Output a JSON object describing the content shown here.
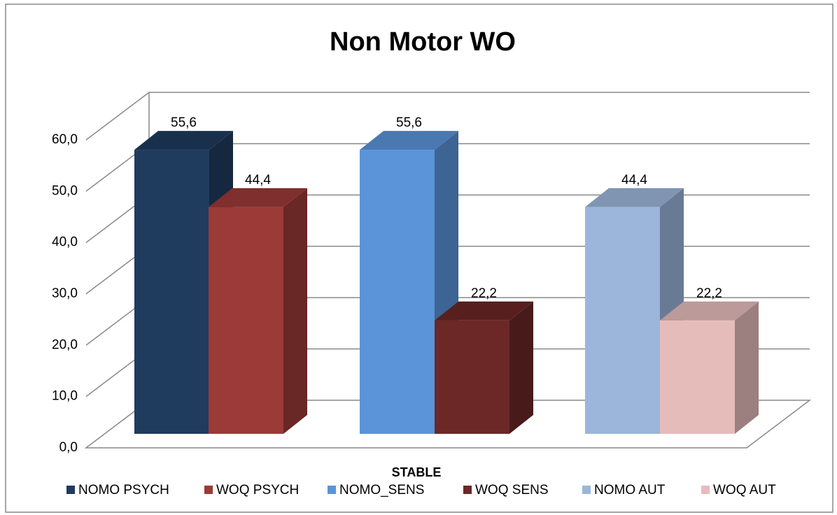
{
  "chart_data": {
    "type": "bar3d",
    "title": "Non Motor WO",
    "categories": [
      "STABLE"
    ],
    "series": [
      {
        "name": "NOMO PSYCH",
        "color": "#1f3b5e",
        "values": [
          55.6
        ],
        "value_labels": [
          "55,6"
        ]
      },
      {
        "name": "WOQ PSYCH",
        "color": "#9b3a37",
        "values": [
          44.4
        ],
        "value_labels": [
          "44,4"
        ]
      },
      {
        "name": "NOMO_SENS",
        "color": "#5b94d8",
        "values": [
          55.6
        ],
        "value_labels": [
          "55,6"
        ]
      },
      {
        "name": "WOQ SENS",
        "color": "#6b2827",
        "values": [
          22.2
        ],
        "value_labels": [
          "22,2"
        ]
      },
      {
        "name": "NOMO AUT",
        "color": "#9bb6da",
        "values": [
          44.4
        ],
        "value_labels": [
          "44,4"
        ]
      },
      {
        "name": "WOQ AUT",
        "color": "#e6bcbb",
        "values": [
          22.2
        ],
        "value_labels": [
          "22,2"
        ]
      }
    ],
    "ylim": [
      0,
      60
    ],
    "yticks": [
      {
        "value": 0,
        "label": "0,0"
      },
      {
        "value": 10,
        "label": "10,0"
      },
      {
        "value": 20,
        "label": "20,0"
      },
      {
        "value": 30,
        "label": "30,0"
      },
      {
        "value": 40,
        "label": "40,0"
      },
      {
        "value": 50,
        "label": "50,0"
      },
      {
        "value": 60,
        "label": "60,0"
      }
    ],
    "grid": true,
    "legend": "bottom"
  }
}
